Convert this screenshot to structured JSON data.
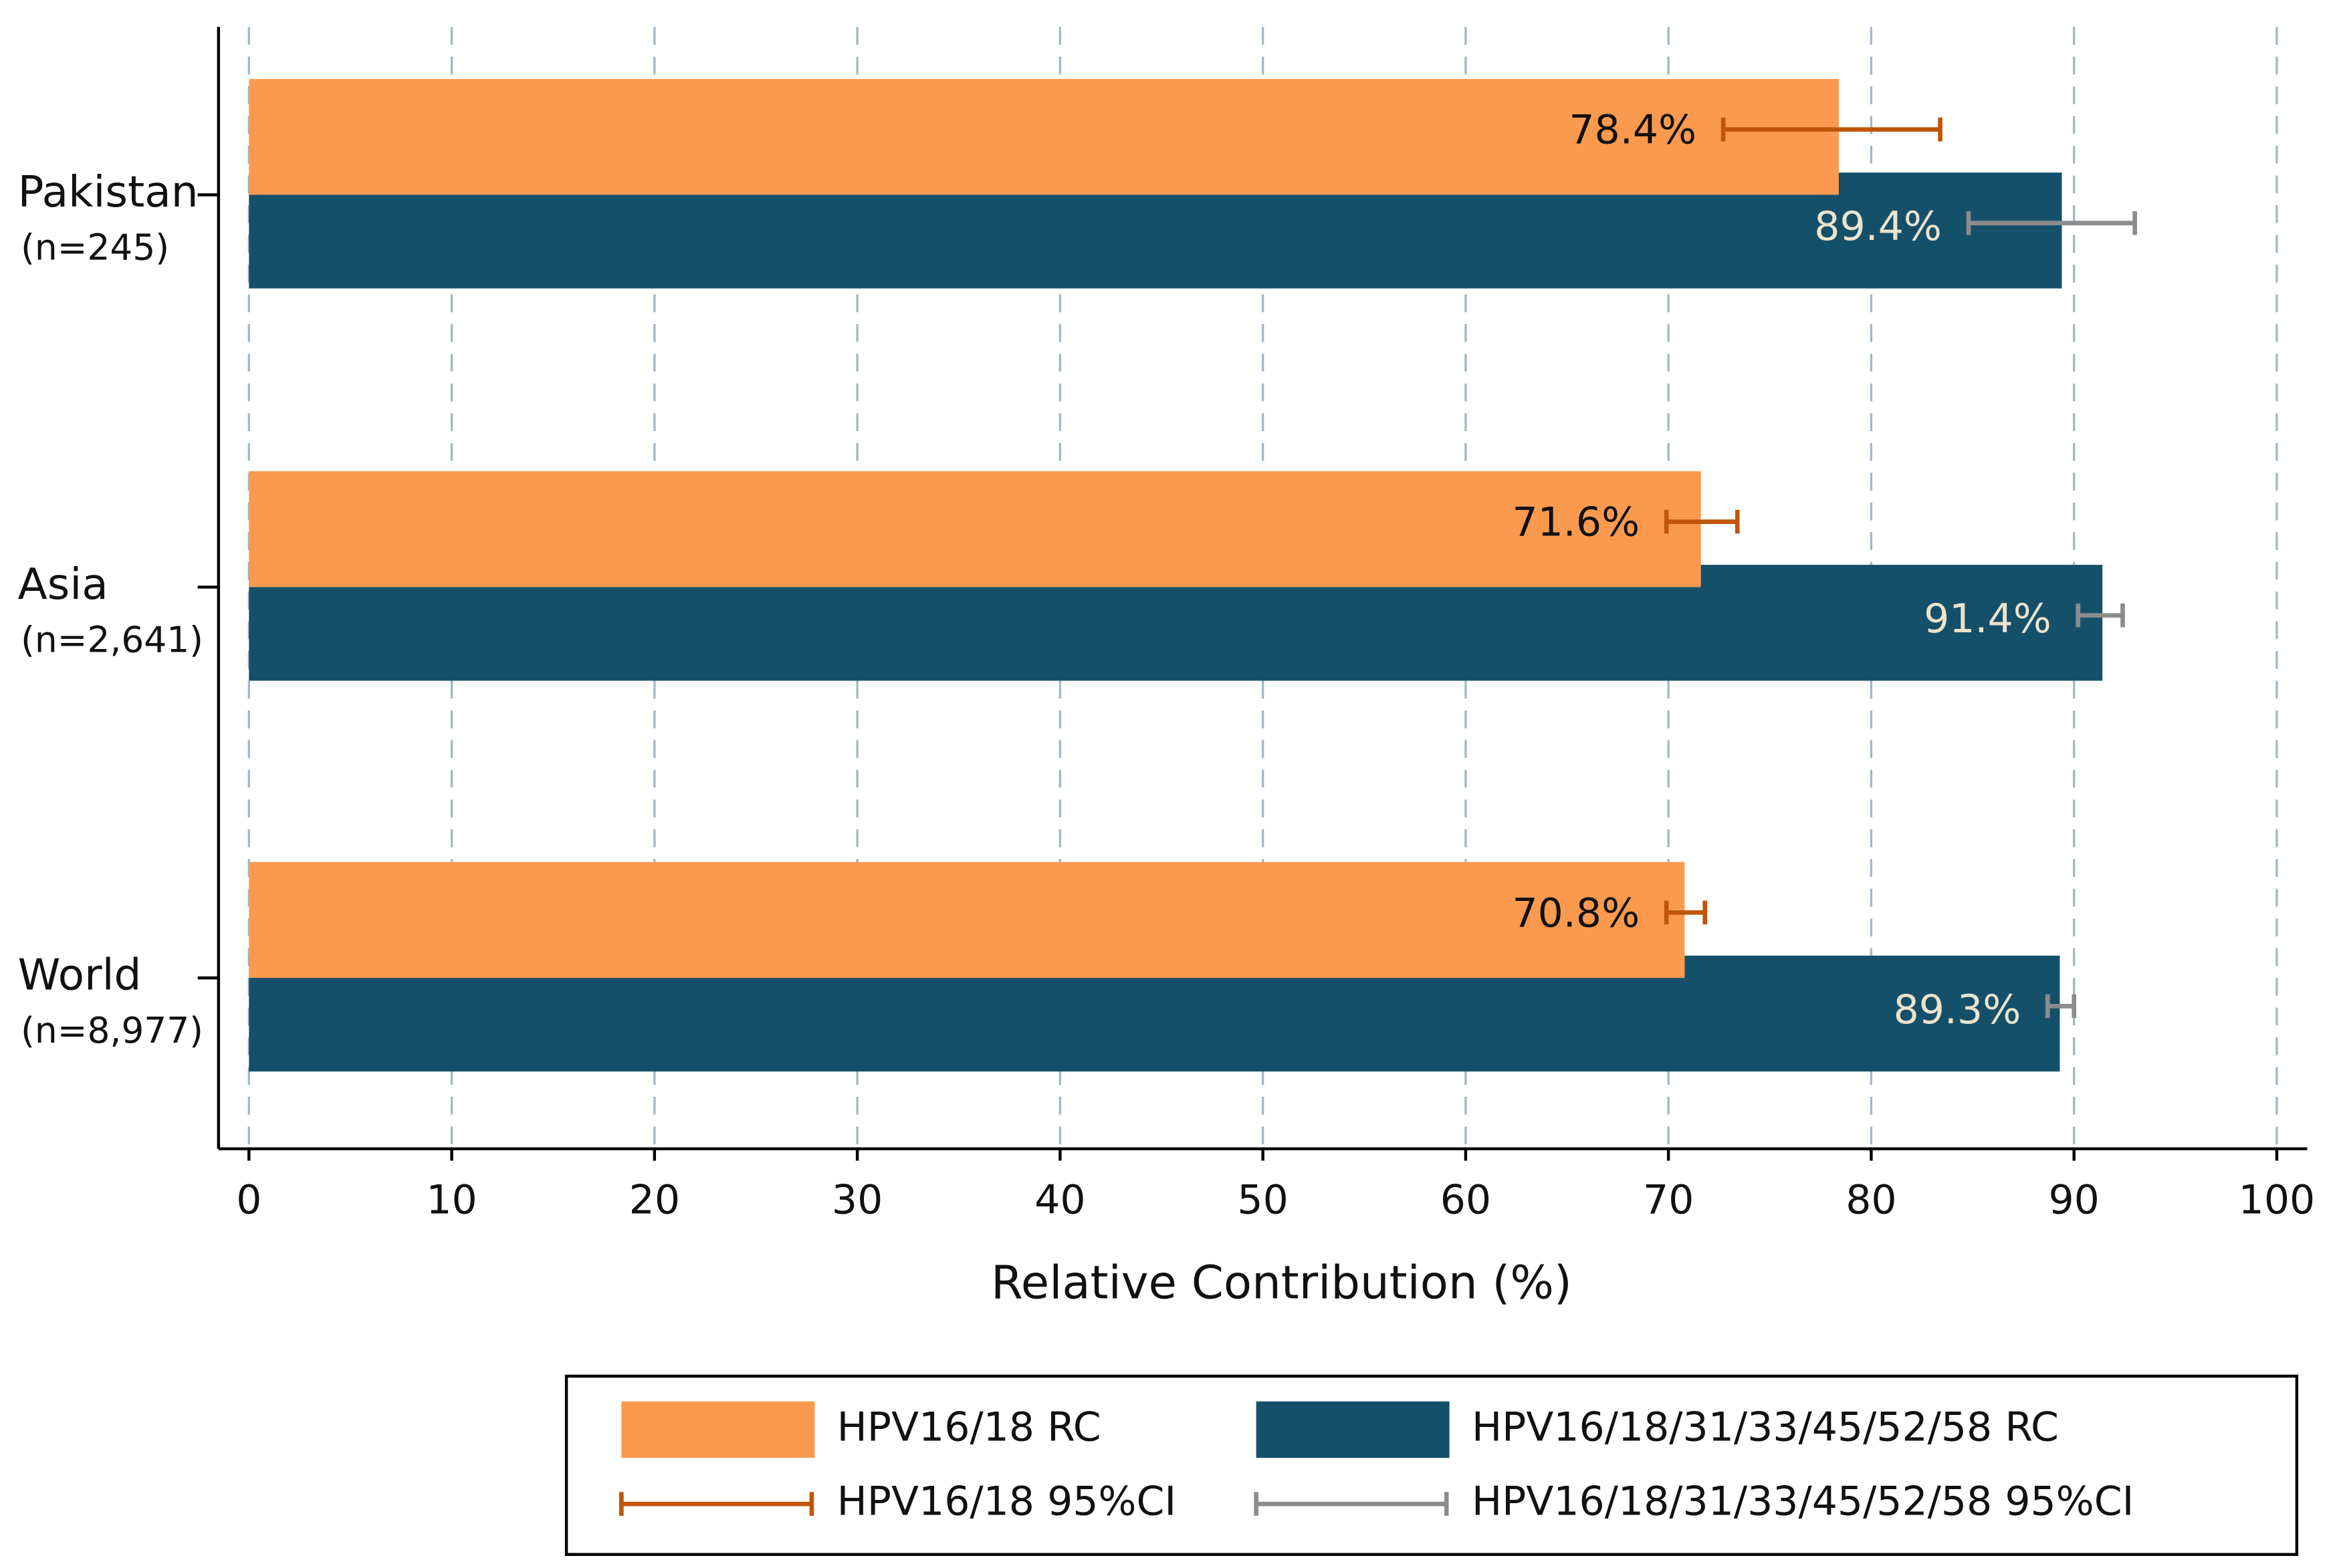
{
  "chart_data": {
    "type": "bar",
    "orientation": "horizontal",
    "xlabel": "Relative Contribution (%)",
    "categories": [
      "Pakistan",
      "Asia",
      "World"
    ],
    "sample_sizes": [
      "(n=245)",
      "(n=2,641)",
      "(n=8,977)"
    ],
    "series": [
      {
        "name": "HPV16/18 RC",
        "color": "#fb9a4f",
        "label_color": "#111111",
        "values": [
          78.4,
          71.6,
          70.8
        ],
        "value_labels": [
          "78.4%",
          "71.6%",
          "70.8%"
        ],
        "ci_name": "HPV16/18 95%CI",
        "ci_color": "#c0550a",
        "ci_low": [
          72.7,
          69.9,
          69.9
        ],
        "ci_high": [
          83.4,
          73.4,
          71.8
        ]
      },
      {
        "name": "HPV16/18/31/33/45/52/58 RC",
        "color": "#15506b",
        "label_color": "#ece4cc",
        "values": [
          89.4,
          91.4,
          89.3
        ],
        "value_labels": [
          "89.4%",
          "91.4%",
          "89.3%"
        ],
        "ci_name": "HPV16/18/31/33/45/52/58 95%CI",
        "ci_color": "#8c8c8c",
        "ci_low": [
          84.8,
          90.2,
          88.7
        ],
        "ci_high": [
          93.0,
          92.4,
          90.0
        ]
      }
    ],
    "xlim": [
      -1.5,
      101.5
    ],
    "xticks": [
      0,
      10,
      20,
      30,
      40,
      50,
      60,
      70,
      80,
      90,
      100
    ],
    "grid": true
  }
}
